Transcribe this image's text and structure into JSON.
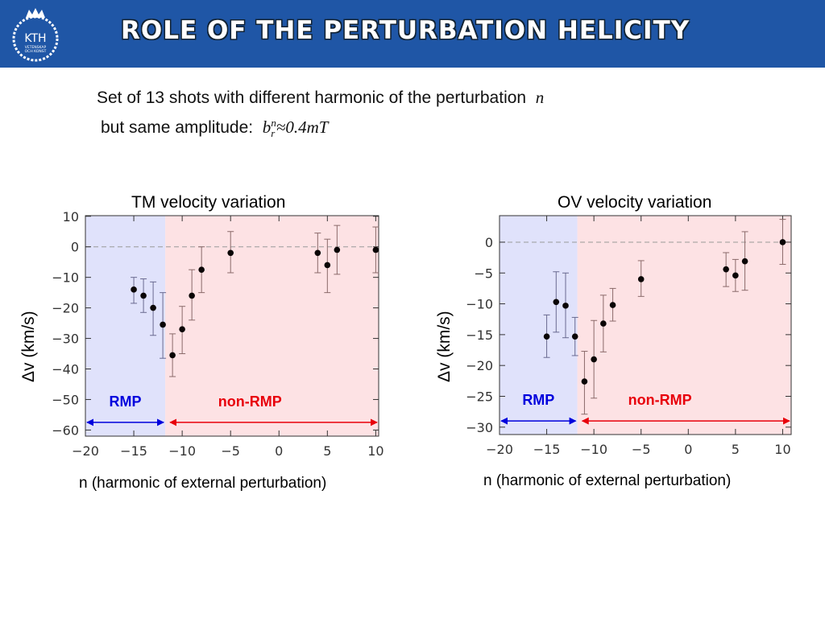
{
  "header": {
    "title": "ROLE OF THE PERTURBATION HELICITY",
    "logo_text": "KTH",
    "logo_subtext": [
      "VETENSKAP",
      "OCH KONST"
    ],
    "color": "#1f56a6"
  },
  "intro": {
    "line1": "Set of 13 shots with different harmonic of the perturbation",
    "line1_var": "n",
    "line2": "but same amplitude:",
    "amp_b": "b",
    "amp_sub": "r",
    "amp_sup": "n",
    "amp_value": "≈0.4mT"
  },
  "chart_data": [
    {
      "type": "scatter",
      "title": "TM velocity variation",
      "xlabel": "n (harmonic of external perturbation)",
      "ylabel": "Δv (km/s)",
      "xlim": [
        -20,
        10.3
      ],
      "ylim": [
        -62,
        10.2
      ],
      "xticks": [
        -20,
        -15,
        -10,
        -5,
        0,
        5,
        10
      ],
      "yticks": [
        10,
        0,
        -10,
        -20,
        -30,
        -40,
        -50,
        -60
      ],
      "reference_line": 0,
      "regions": [
        {
          "label": "RMP",
          "from": -20,
          "to": -11.75,
          "color": "#0000dd",
          "fill": "#e0e2fb",
          "arrow_y": -57.5
        },
        {
          "label": "non-RMP",
          "from": -11.75,
          "to": 10.3,
          "color": "#e8000b",
          "fill": "#fde2e4",
          "arrow_y": -57.5
        }
      ],
      "points": [
        {
          "x": -15,
          "y": -14,
          "lo": -18.5,
          "hi": -10
        },
        {
          "x": -14,
          "y": -16,
          "lo": -21.5,
          "hi": -10.5
        },
        {
          "x": -13,
          "y": -20,
          "lo": -29,
          "hi": -11.5
        },
        {
          "x": -12,
          "y": -25.5,
          "lo": -36.5,
          "hi": -15
        },
        {
          "x": -11,
          "y": -35.5,
          "lo": -42.5,
          "hi": -28.5
        },
        {
          "x": -10,
          "y": -27,
          "lo": -35,
          "hi": -19.5
        },
        {
          "x": -9,
          "y": -16,
          "lo": -24,
          "hi": -7.5
        },
        {
          "x": -8,
          "y": -7.5,
          "lo": -15,
          "hi": 0
        },
        {
          "x": -5,
          "y": -2,
          "lo": -8.5,
          "hi": 5
        },
        {
          "x": 4,
          "y": -2,
          "lo": -8.5,
          "hi": 4.5
        },
        {
          "x": 5,
          "y": -6,
          "lo": -15,
          "hi": 2.5
        },
        {
          "x": 6,
          "y": -1,
          "lo": -9,
          "hi": 7
        },
        {
          "x": 10,
          "y": -1,
          "lo": -8.5,
          "hi": 6.5
        }
      ]
    },
    {
      "type": "scatter",
      "title": "OV velocity variation",
      "xlabel": "n (harmonic of external perturbation)",
      "ylabel": "Δv (km/s)",
      "xlim": [
        -20,
        10.9
      ],
      "ylim": [
        -31.2,
        4.3
      ],
      "xticks": [
        -20,
        -15,
        -10,
        -5,
        0,
        5,
        10
      ],
      "yticks": [
        0,
        -5,
        -10,
        -15,
        -20,
        -25,
        -30
      ],
      "reference_line": 0,
      "regions": [
        {
          "label": "RMP",
          "from": -20,
          "to": -11.75,
          "color": "#0000dd",
          "fill": "#e0e2fb",
          "arrow_y": -29
        },
        {
          "label": "non-RMP",
          "from": -11.75,
          "to": 10.9,
          "color": "#e8000b",
          "fill": "#fde2e4",
          "arrow_y": -29
        }
      ],
      "points": [
        {
          "x": -15,
          "y": -15.3,
          "lo": -18.7,
          "hi": -11.8
        },
        {
          "x": -14,
          "y": -9.7,
          "lo": -14.6,
          "hi": -4.8
        },
        {
          "x": -13,
          "y": -10.3,
          "lo": -15.5,
          "hi": -5
        },
        {
          "x": -12,
          "y": -15.3,
          "lo": -18.4,
          "hi": -12.2
        },
        {
          "x": -11,
          "y": -22.6,
          "lo": -27.9,
          "hi": -17.7
        },
        {
          "x": -10,
          "y": -19,
          "lo": -25.3,
          "hi": -12.7
        },
        {
          "x": -9,
          "y": -13.2,
          "lo": -17.8,
          "hi": -8.6
        },
        {
          "x": -8,
          "y": -10.2,
          "lo": -12.8,
          "hi": -7.5
        },
        {
          "x": -5,
          "y": -6,
          "lo": -8.8,
          "hi": -3
        },
        {
          "x": 4,
          "y": -4.4,
          "lo": -7.2,
          "hi": -1.7
        },
        {
          "x": 5,
          "y": -5.4,
          "lo": -8,
          "hi": -2.8
        },
        {
          "x": 6,
          "y": -3.1,
          "lo": -7.8,
          "hi": 1.7
        },
        {
          "x": 10,
          "y": 0,
          "lo": -3.6,
          "hi": 3.7
        }
      ]
    }
  ]
}
